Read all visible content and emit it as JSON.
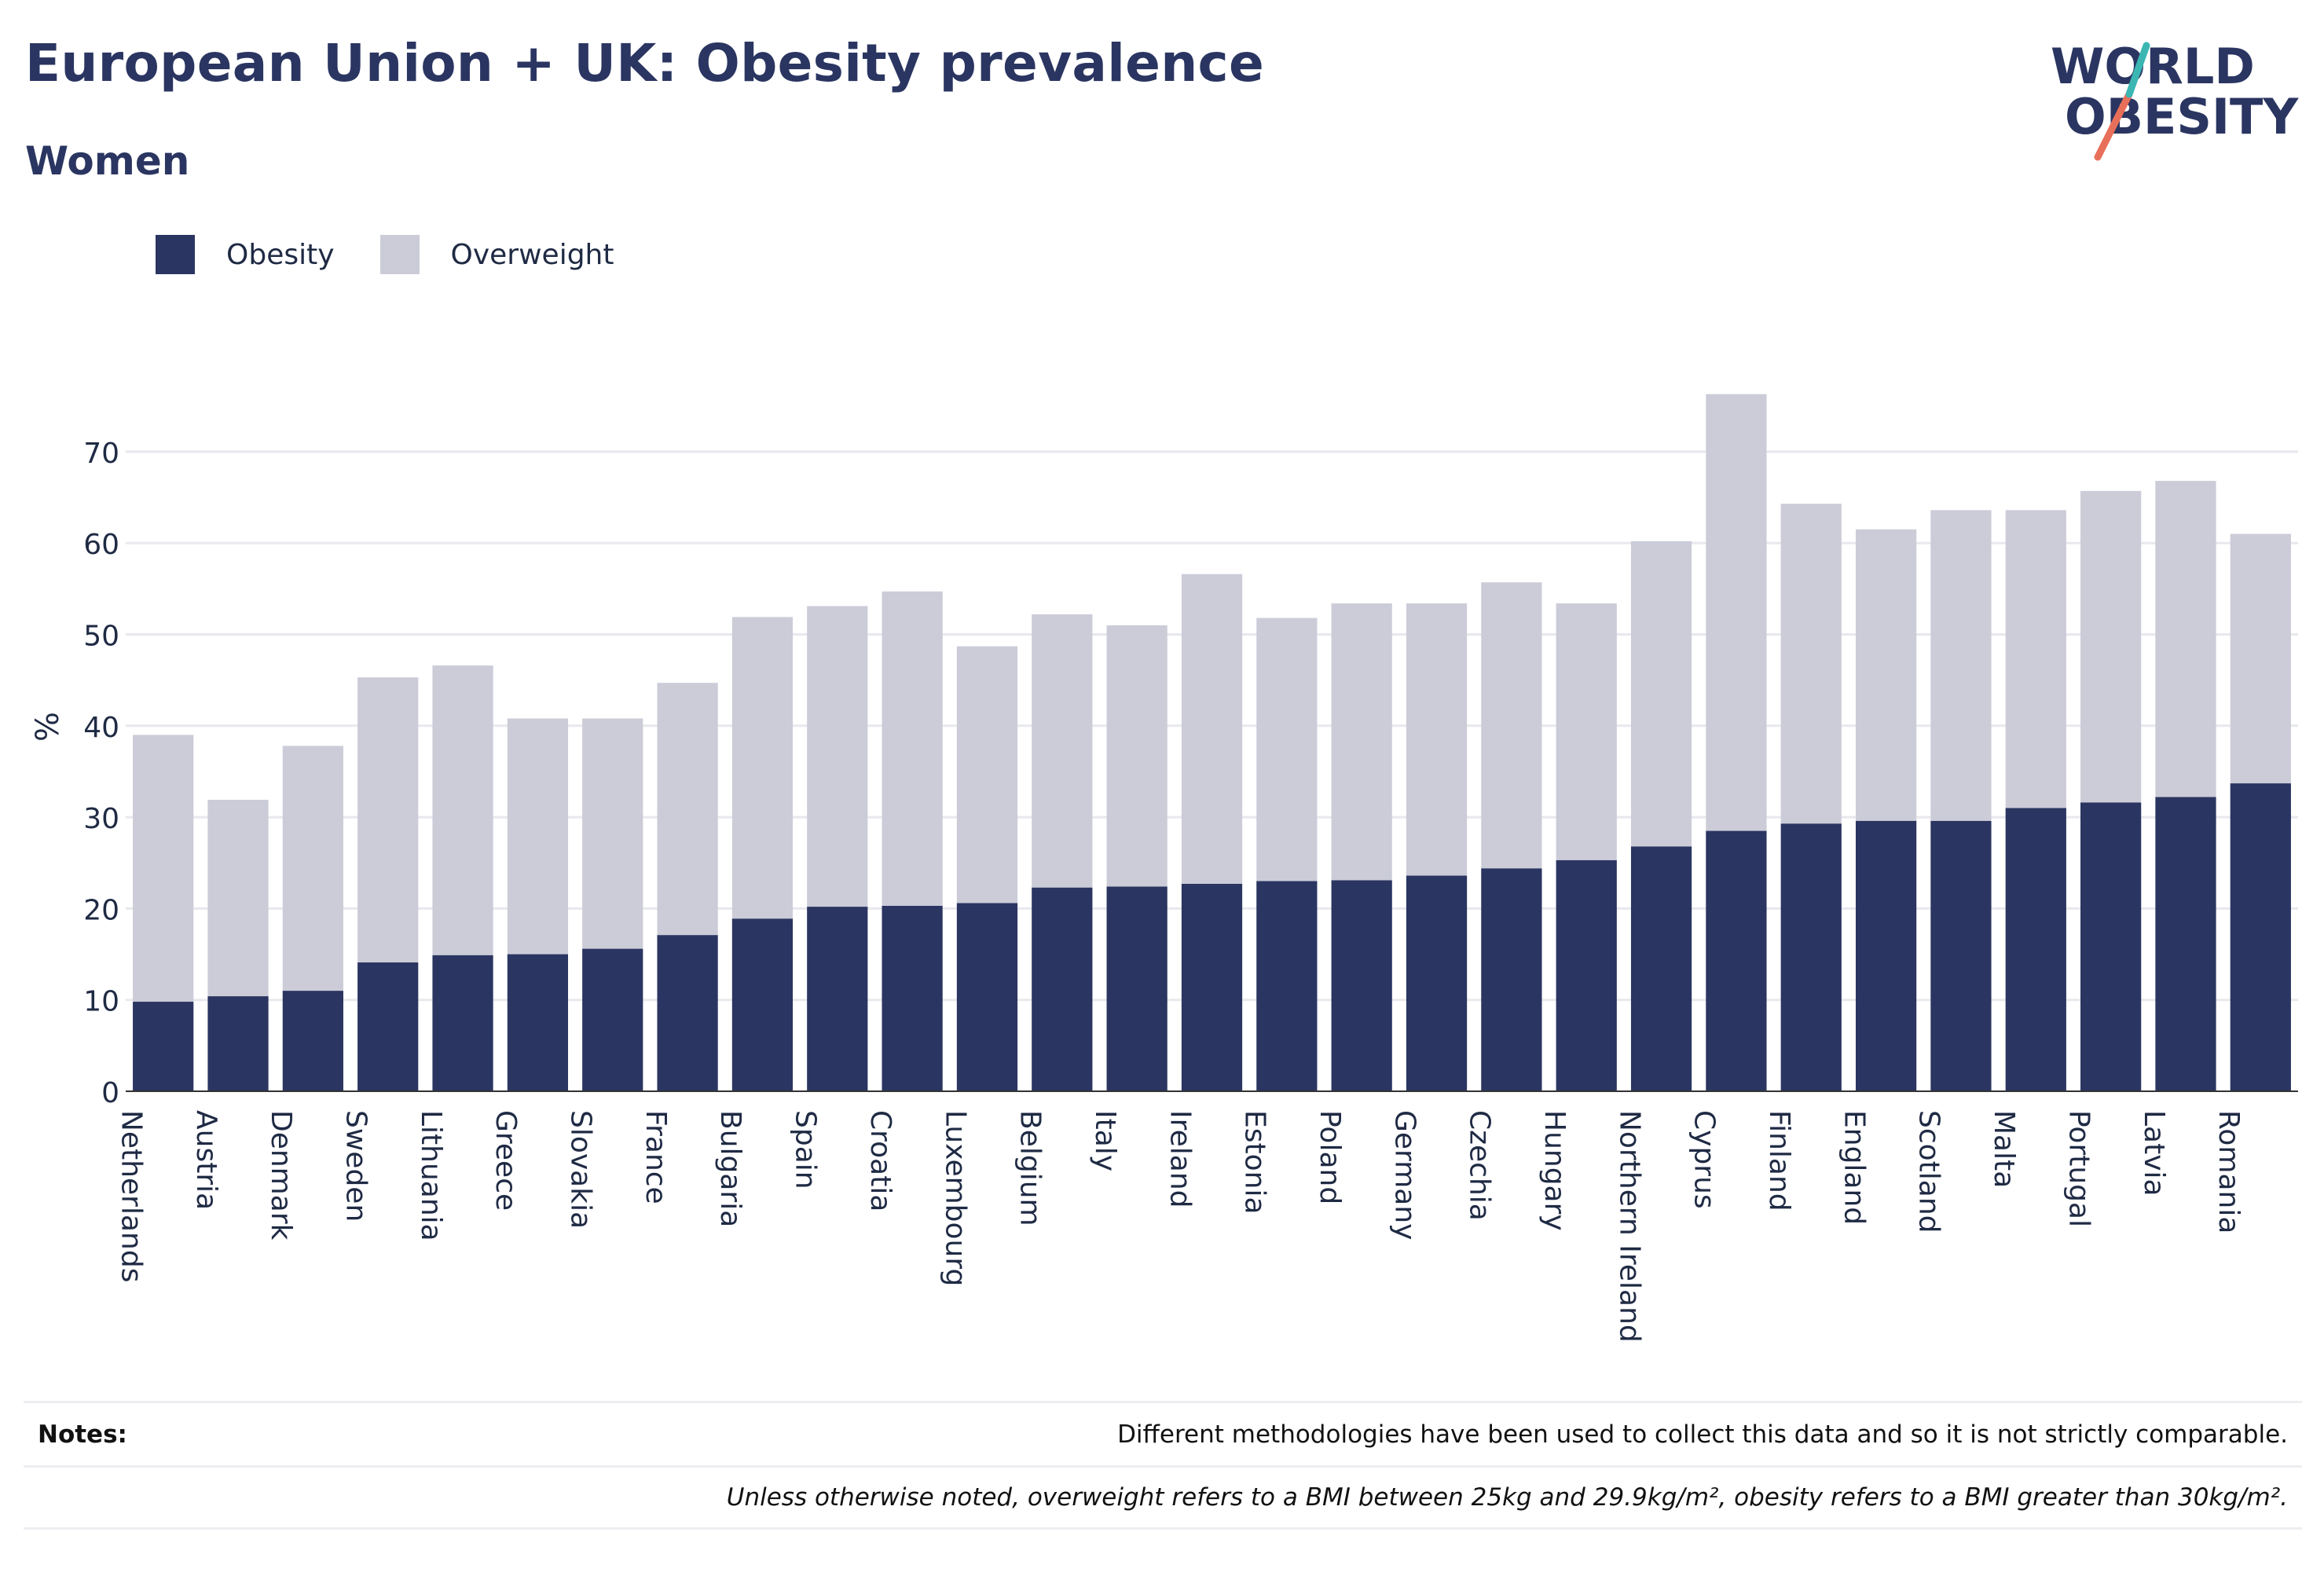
{
  "header": {
    "title": "European Union + UK: Obesity prevalence",
    "subtitle": "Women"
  },
  "logo": {
    "line1": "WORLD",
    "line2": "OBESITY"
  },
  "legend": [
    {
      "label": "Obesity",
      "color": "#2a3561"
    },
    {
      "label": "Overweight",
      "color": "#cbccd8"
    }
  ],
  "notes": {
    "label": "Notes:",
    "line1": "Different methodologies have been used to collect this data and so it is not strictly comparable.",
    "line2": "Unless otherwise noted, overweight refers to a BMI between 25kg and 29.9kg/m², obesity refers to a BMI greater than 30kg/m²."
  },
  "chart_data": {
    "type": "bar",
    "stacked": true,
    "ylabel": "%",
    "ylim": [
      0,
      80
    ],
    "yticks": [
      0,
      10,
      20,
      30,
      40,
      50,
      60,
      70
    ],
    "grid": true,
    "legend_position": "top-left",
    "categories": [
      "Netherlands",
      "Austria",
      "Denmark",
      "Sweden",
      "Lithuania",
      "Greece",
      "Slovakia",
      "France",
      "Bulgaria",
      "Spain",
      "Croatia",
      "Luxembourg",
      "Belgium",
      "Italy",
      "Ireland",
      "Estonia",
      "Poland",
      "Germany",
      "Czechia",
      "Hungary",
      "Northern Ireland",
      "Cyprus",
      "Finland",
      "England",
      "Scotland",
      "Malta",
      "Portugal",
      "Latvia",
      "Romania"
    ],
    "series": [
      {
        "name": "Obesity",
        "color": "#2a3561",
        "values": [
          9.8,
          10.4,
          11.0,
          14.1,
          14.9,
          15.0,
          15.6,
          17.1,
          18.9,
          20.2,
          20.3,
          20.6,
          22.3,
          22.4,
          22.7,
          23.0,
          23.1,
          23.6,
          24.4,
          25.3,
          26.8,
          28.5,
          29.3,
          29.6,
          29.6,
          31.0,
          31.6,
          32.2,
          33.7
        ]
      },
      {
        "name": "Overweight",
        "color": "#cbccd8",
        "values": [
          29.2,
          21.5,
          26.8,
          31.2,
          31.7,
          25.8,
          25.2,
          27.6,
          33.0,
          32.9,
          34.4,
          28.1,
          29.9,
          28.6,
          33.9,
          28.8,
          30.3,
          29.8,
          31.3,
          28.1,
          33.4,
          47.8,
          35.0,
          31.9,
          34.0,
          32.6,
          34.1,
          34.6,
          27.3
        ]
      }
    ]
  }
}
